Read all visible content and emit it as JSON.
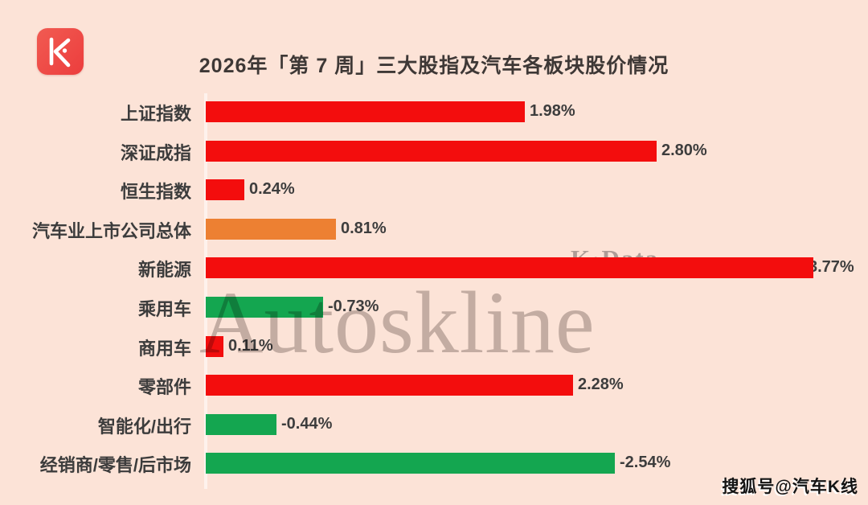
{
  "header": {
    "logo_glyph": "K",
    "title": "2026年「第 7 周」三大股指及汽车各板块股价情况"
  },
  "watermarks": {
    "kdata": "K·Data",
    "autoskline": "Autoskline",
    "sohu_badge": "搜狐号@汽车K线"
  },
  "colors": {
    "background": "#fce3d7",
    "up": "#f30d0d",
    "down": "#14a650",
    "overall": "#ed8032",
    "logo_red": "#ee4242",
    "title_text": "#3e3836",
    "label_text": "#3c3c3c"
  },
  "chart_data": {
    "type": "bar",
    "orientation": "horizontal",
    "title": "2026年「第 7 周」三大股指及汽车各板块股价情况",
    "xlabel": "",
    "ylabel": "",
    "xlim": [
      0,
      4.1
    ],
    "grid": false,
    "legend": false,
    "value_label_position": "outside-end",
    "categories": [
      "上证指数",
      "深证成指",
      "恒生指数",
      "汽车业上市公司总体",
      "新能源",
      "乘用车",
      "商用车",
      "零部件",
      "智能化/出行",
      "经销商/零售/后市场"
    ],
    "values": [
      1.98,
      2.8,
      0.24,
      0.81,
      3.77,
      -0.73,
      0.11,
      2.28,
      -0.44,
      -2.54
    ],
    "value_labels": [
      "1.98%",
      "2.80%",
      "0.24%",
      "0.81%",
      "3.77%",
      "-0.73%",
      "0.11%",
      "2.28%",
      "-0.44%",
      "-2.54%"
    ],
    "color_roles": [
      "up",
      "up",
      "up",
      "overall",
      "up",
      "down",
      "up",
      "up",
      "down",
      "down"
    ],
    "series_colors": {
      "up": "#f30d0d",
      "down": "#14a650",
      "overall": "#ed8032"
    }
  }
}
